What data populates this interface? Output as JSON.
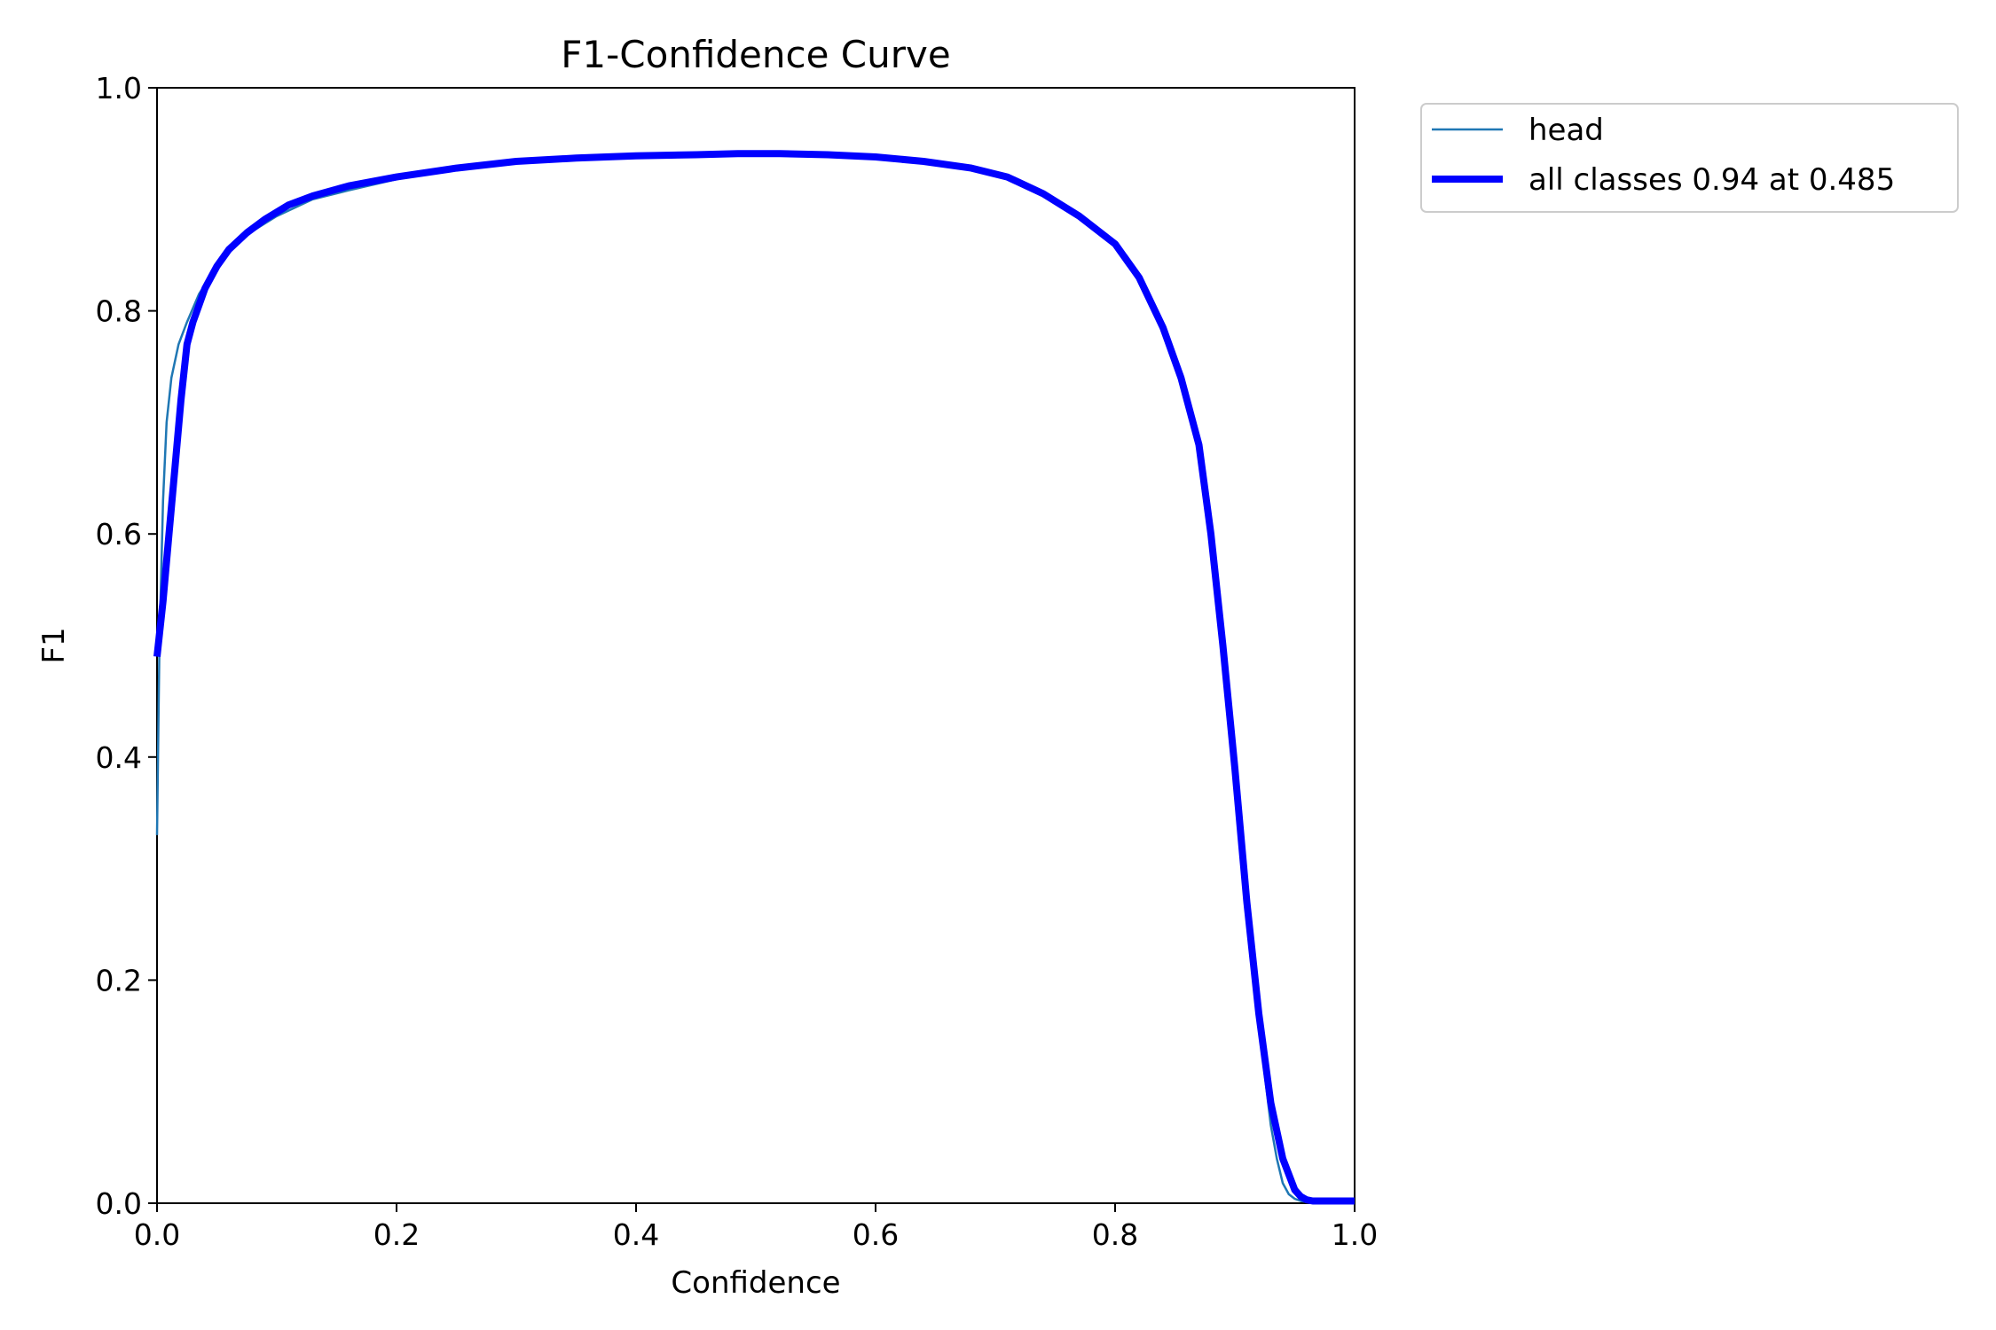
{
  "chart_data": {
    "type": "line",
    "title": "F1-Confidence Curve",
    "xlabel": "Confidence",
    "ylabel": "F1",
    "xlim": [
      0.0,
      1.0
    ],
    "ylim": [
      0.0,
      1.0
    ],
    "xticks": [
      "0.0",
      "0.2",
      "0.4",
      "0.6",
      "0.8",
      "1.0"
    ],
    "yticks": [
      "0.0",
      "0.2",
      "0.4",
      "0.6",
      "0.8",
      "1.0"
    ],
    "grid": false,
    "legend_position": "outside-top-right",
    "series": [
      {
        "name": "head",
        "color": "#1f77b4",
        "line_style": "thin",
        "x": [
          0.0,
          0.002,
          0.005,
          0.008,
          0.012,
          0.018,
          0.025,
          0.035,
          0.05,
          0.07,
          0.1,
          0.13,
          0.16,
          0.2,
          0.25,
          0.3,
          0.35,
          0.4,
          0.45,
          0.485,
          0.52,
          0.56,
          0.6,
          0.64,
          0.68,
          0.71,
          0.74,
          0.77,
          0.8,
          0.82,
          0.84,
          0.855,
          0.87,
          0.88,
          0.89,
          0.9,
          0.91,
          0.92,
          0.93,
          0.935,
          0.94,
          0.945,
          0.95,
          0.955,
          0.96,
          0.97,
          0.98,
          1.0
        ],
        "y": [
          0.33,
          0.5,
          0.63,
          0.7,
          0.74,
          0.77,
          0.79,
          0.815,
          0.84,
          0.865,
          0.885,
          0.9,
          0.908,
          0.918,
          0.928,
          0.935,
          0.938,
          0.94,
          0.941,
          0.941,
          0.941,
          0.94,
          0.938,
          0.934,
          0.928,
          0.92,
          0.905,
          0.885,
          0.86,
          0.83,
          0.785,
          0.745,
          0.68,
          0.6,
          0.5,
          0.39,
          0.27,
          0.16,
          0.07,
          0.04,
          0.018,
          0.008,
          0.004,
          0.002,
          0.001,
          0.001,
          0.001,
          0.001
        ]
      },
      {
        "name": "all classes 0.94 at 0.485",
        "color": "#0000ff",
        "line_style": "thick",
        "x": [
          0.0,
          0.005,
          0.01,
          0.015,
          0.02,
          0.025,
          0.03,
          0.035,
          0.04,
          0.05,
          0.06,
          0.075,
          0.09,
          0.11,
          0.13,
          0.16,
          0.2,
          0.25,
          0.3,
          0.35,
          0.4,
          0.45,
          0.485,
          0.52,
          0.56,
          0.6,
          0.64,
          0.68,
          0.71,
          0.74,
          0.77,
          0.8,
          0.82,
          0.84,
          0.855,
          0.87,
          0.88,
          0.89,
          0.9,
          0.91,
          0.92,
          0.93,
          0.94,
          0.95,
          0.955,
          0.96,
          0.965,
          0.97,
          0.98,
          1.0
        ],
        "y": [
          0.49,
          0.54,
          0.6,
          0.66,
          0.72,
          0.77,
          0.79,
          0.805,
          0.82,
          0.84,
          0.855,
          0.87,
          0.882,
          0.895,
          0.903,
          0.912,
          0.92,
          0.928,
          0.934,
          0.937,
          0.939,
          0.94,
          0.941,
          0.941,
          0.94,
          0.938,
          0.934,
          0.928,
          0.92,
          0.905,
          0.885,
          0.86,
          0.83,
          0.785,
          0.74,
          0.68,
          0.6,
          0.5,
          0.39,
          0.27,
          0.17,
          0.09,
          0.04,
          0.012,
          0.006,
          0.003,
          0.002,
          0.002,
          0.002,
          0.002
        ]
      }
    ]
  }
}
